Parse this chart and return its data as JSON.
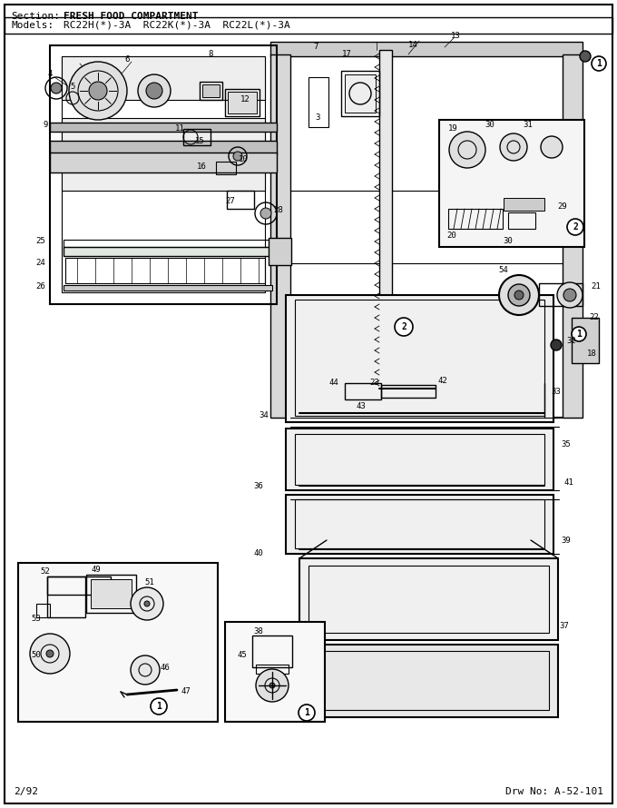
{
  "title_section": "Section:",
  "title_section_val": "FRESH FOOD COMPARTMENT",
  "title_models": "Models:",
  "title_models_val": "RC22H(*)-3A  RC22K(*)-3A  RC22L(*)-3A",
  "footer_left": "2/92",
  "footer_right": "Drw No: A-52-101",
  "bg_color": "#ffffff",
  "fig_width": 6.8,
  "fig_height": 8.9,
  "dpi": 100
}
